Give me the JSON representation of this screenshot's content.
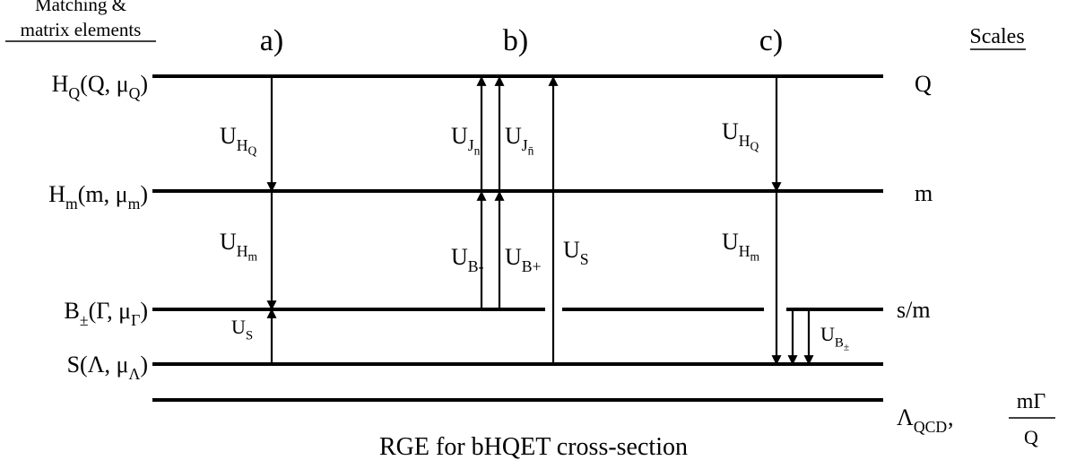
{
  "header": {
    "left_title_line1": "Matching &",
    "left_title_line2": "matrix elements",
    "right_title": "Scales"
  },
  "columns": [
    "a)",
    "b)",
    "c)"
  ],
  "left_labels": [
    {
      "parts": [
        {
          "text": "H",
          "level": 0
        },
        {
          "text": "Q",
          "level": 1
        },
        {
          "text": "(Q, μ",
          "level": 0
        },
        {
          "text": "Q",
          "level": 1
        },
        {
          "text": ")",
          "level": 0
        }
      ]
    },
    {
      "parts": [
        {
          "text": "H",
          "level": 0
        },
        {
          "text": "m",
          "level": 1
        },
        {
          "text": "(m, μ",
          "level": 0
        },
        {
          "text": "m",
          "level": 1
        },
        {
          "text": ")",
          "level": 0
        }
      ]
    },
    {
      "parts": [
        {
          "text": "B",
          "level": 0
        },
        {
          "text": "±",
          "level": 1
        },
        {
          "text": "(Γ, μ",
          "level": 0
        },
        {
          "text": "Γ",
          "level": 1
        },
        {
          "text": ")",
          "level": 0
        }
      ]
    },
    {
      "parts": [
        {
          "text": "S(Λ, μ",
          "level": 0
        },
        {
          "text": "Λ",
          "level": 1
        },
        {
          "text": ")",
          "level": 0
        }
      ]
    }
  ],
  "right_labels": [
    "Q",
    "m",
    "s/m"
  ],
  "arrow_labels": [
    {
      "parts": [
        {
          "text": "U",
          "level": 0
        },
        {
          "text": "H",
          "level": 1
        },
        {
          "text": "Q",
          "level": 2
        }
      ]
    },
    {
      "parts": [
        {
          "text": "U",
          "level": 0
        },
        {
          "text": "J",
          "level": 1
        },
        {
          "text": "n",
          "level": 2
        }
      ]
    },
    {
      "parts": [
        {
          "text": "U",
          "level": 0
        },
        {
          "text": "J",
          "level": 1
        },
        {
          "text": "n̄",
          "level": 2
        }
      ]
    },
    {
      "parts": [
        {
          "text": "U",
          "level": 0
        },
        {
          "text": "H",
          "level": 1
        },
        {
          "text": "Q",
          "level": 2
        }
      ]
    },
    {
      "parts": [
        {
          "text": "U",
          "level": 0
        },
        {
          "text": "H",
          "level": 1
        },
        {
          "text": "m",
          "level": 2
        }
      ]
    },
    {
      "parts": [
        {
          "text": "U",
          "level": 0
        },
        {
          "text": "B-",
          "level": 1
        }
      ]
    },
    {
      "parts": [
        {
          "text": "U",
          "level": 0
        },
        {
          "text": "B+",
          "level": 1
        }
      ]
    },
    {
      "parts": [
        {
          "text": "U",
          "level": 0
        },
        {
          "text": "S",
          "level": 1
        }
      ]
    },
    {
      "parts": [
        {
          "text": "U",
          "level": 0
        },
        {
          "text": "H",
          "level": 1
        },
        {
          "text": "m",
          "level": 2
        }
      ]
    },
    {
      "parts": [
        {
          "text": "U",
          "level": 0
        },
        {
          "text": "S",
          "level": 1
        }
      ]
    },
    {
      "parts": [
        {
          "text": "U",
          "level": 0
        },
        {
          "text": "B",
          "level": 1
        },
        {
          "text": "±",
          "level": 2
        }
      ]
    }
  ],
  "bottom_scale": {
    "symbol": [
      {
        "text": "Λ",
        "level": 0
      },
      {
        "text": "QCD",
        "level": 1
      }
    ],
    "separator": ",",
    "numerator": "mΓ",
    "denominator": "Q"
  },
  "caption": "RGE for bHQET cross-section"
}
